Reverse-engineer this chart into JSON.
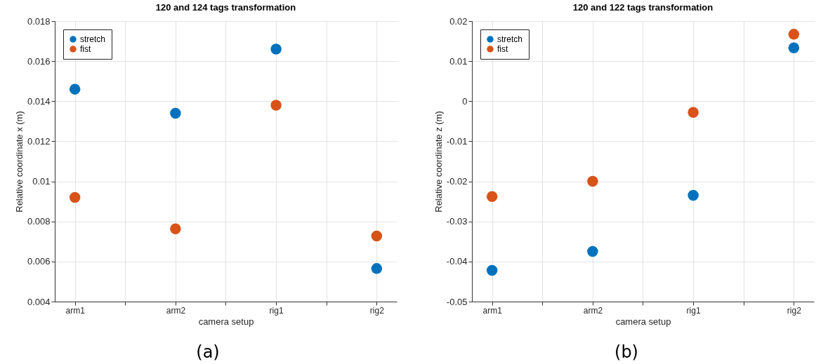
{
  "chart_data": [
    {
      "type": "scatter",
      "title": "120 and 124 tags transformation",
      "xlabel": "camera setup",
      "ylabel": "Relative coordinate x (m)",
      "categories": [
        "arm1",
        "arm2",
        "rig1",
        "rig2"
      ],
      "series": [
        {
          "name": "stretch",
          "color": "#0072bd",
          "values": [
            0.0146,
            0.0134,
            0.0166,
            0.00565
          ]
        },
        {
          "name": "fist",
          "color": "#d95319",
          "values": [
            0.0092,
            0.00763,
            0.0138,
            0.00727
          ]
        }
      ],
      "ylim": [
        0.004,
        0.018
      ],
      "yticks": [
        0.004,
        0.006,
        0.008,
        0.01,
        0.012,
        0.014,
        0.016,
        0.018
      ],
      "grid": true,
      "legend": "top left",
      "marker": "circle",
      "annotations": [
        "(a)"
      ]
    },
    {
      "type": "scatter",
      "title": "120 and 122 tags transformation",
      "xlabel": "camera setup",
      "ylabel": "Relative coordinate z (m)",
      "categories": [
        "arm1",
        "arm2",
        "rig1",
        "rig2"
      ],
      "series": [
        {
          "name": "stretch",
          "color": "#0072bd",
          "values": [
            -0.0422,
            -0.0375,
            -0.0235,
            0.0133
          ]
        },
        {
          "name": "fist",
          "color": "#d95319",
          "values": [
            -0.0238,
            -0.02,
            -0.0028,
            0.0167
          ]
        }
      ],
      "ylim": [
        -0.05,
        0.02
      ],
      "yticks": [
        -0.05,
        -0.04,
        -0.03,
        -0.02,
        -0.01,
        0,
        0.01,
        0.02
      ],
      "grid": true,
      "legend": "top left",
      "marker": "circle",
      "annotations": [
        "(b)"
      ]
    }
  ]
}
